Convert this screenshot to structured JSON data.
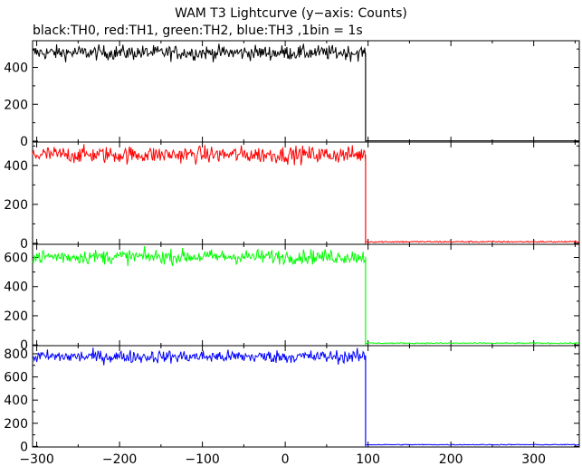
{
  "chart_data": {
    "type": "line",
    "title": "WAM T3 Lightcurve (y−axis: Counts)",
    "subtitle": "black:TH0, red:TH1, green:TH2, blue:TH3 ,1bin = 1s",
    "xlim": [
      -305,
      355
    ],
    "x_ticks": [
      -300,
      -200,
      -100,
      0,
      100,
      200,
      300
    ],
    "x_tick_labels": [
      "−300",
      "−200",
      "−100",
      "0",
      "100",
      "200",
      "300"
    ],
    "grid": false,
    "transition_x": 97,
    "panels": [
      {
        "color": "#000000",
        "ylim": [
          -5,
          545
        ],
        "y_ticks": [
          0,
          200,
          400
        ],
        "levels": [
          {
            "x": [
              -305,
              97
            ],
            "y_mean": 480,
            "y_noise": 20
          },
          {
            "x": [
              97,
              355
            ],
            "y_mean": 2,
            "y_noise": 0
          }
        ]
      },
      {
        "color": "#ff0000",
        "ylim": [
          -5,
          520
        ],
        "y_ticks": [
          0,
          200,
          400
        ],
        "levels": [
          {
            "x": [
              -305,
              97
            ],
            "y_mean": 455,
            "y_noise": 22
          },
          {
            "x": [
              97,
              355
            ],
            "y_mean": 8,
            "y_noise": 2
          }
        ]
      },
      {
        "color": "#00ff00",
        "ylim": [
          -5,
          690
        ],
        "y_ticks": [
          0,
          200,
          400,
          600
        ],
        "levels": [
          {
            "x": [
              -305,
              97
            ],
            "y_mean": 605,
            "y_noise": 25
          },
          {
            "x": [
              97,
              355
            ],
            "y_mean": 12,
            "y_noise": 2
          }
        ]
      },
      {
        "color": "#0000ff",
        "ylim": [
          -5,
          870
        ],
        "y_ticks": [
          0,
          200,
          400,
          600,
          800
        ],
        "levels": [
          {
            "x": [
              -305,
              97
            ],
            "y_mean": 775,
            "y_noise": 28
          },
          {
            "x": [
              97,
              355
            ],
            "y_mean": 15,
            "y_noise": 2
          }
        ]
      }
    ]
  }
}
